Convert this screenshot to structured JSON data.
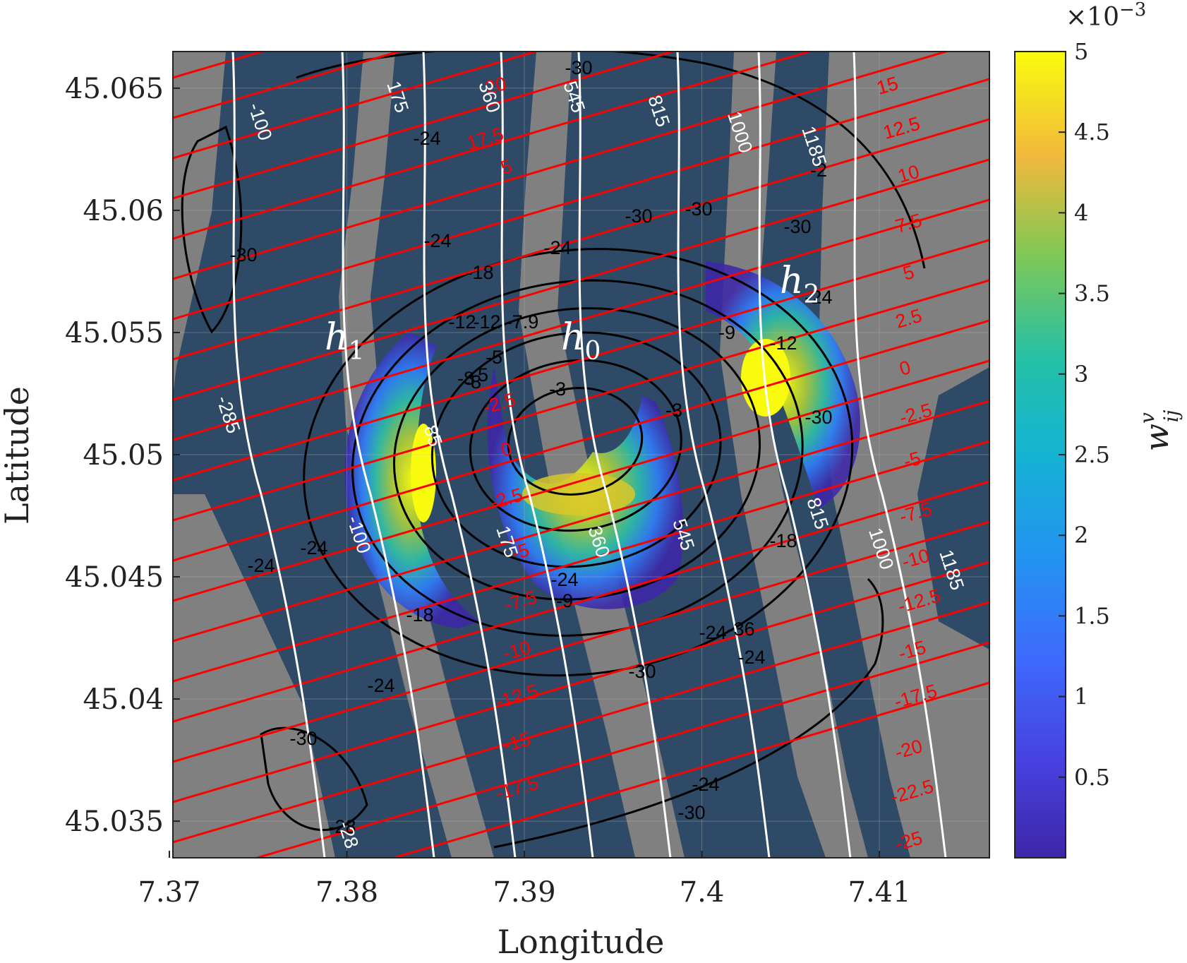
{
  "chart_data": {
    "type": "heatmap",
    "title": "",
    "xlabel": "Longitude",
    "ylabel": "Latitude",
    "xlim": [
      7.3702,
      7.4162
    ],
    "ylim": [
      45.0335,
      45.0665
    ],
    "x_ticks": [
      "7.37",
      "7.38",
      "7.39",
      "7.4",
      "7.41"
    ],
    "x_tick_values": [
      7.37,
      7.38,
      7.39,
      7.4,
      7.41
    ],
    "y_ticks": [
      "45.035",
      "45.04",
      "45.045",
      "45.05",
      "45.055",
      "45.06",
      "45.065"
    ],
    "y_tick_values": [
      45.035,
      45.04,
      45.045,
      45.05,
      45.055,
      45.06,
      45.065
    ],
    "grid": true,
    "colormap": "parula",
    "colorbar": {
      "label": "w",
      "label_sup": "v",
      "label_sub": "ij",
      "exponent_prefix": "×10",
      "exponent": "−3",
      "ticks": [
        "0.5",
        "1",
        "1.5",
        "2",
        "2.5",
        "3",
        "3.5",
        "4",
        "4.5",
        "5"
      ],
      "tick_values": [
        0.5,
        1,
        1.5,
        2,
        2.5,
        3,
        3.5,
        4,
        4.5,
        5
      ],
      "range": [
        0,
        5
      ]
    },
    "background_colors": {
      "swath": "#2f4a66",
      "gap": "#808080"
    },
    "heat_regions": [
      {
        "name": "h1",
        "center": [
          7.3835,
          45.0485
        ],
        "peak": 5.0
      },
      {
        "name": "h0",
        "center": [
          7.3935,
          45.0485
        ],
        "peak": 4.5
      },
      {
        "name": "h2",
        "center": [
          7.4055,
          45.0535
        ],
        "peak": 5.0
      }
    ],
    "region_labels": [
      {
        "main": "h",
        "sub": "1"
      },
      {
        "main": "h",
        "sub": "0"
      },
      {
        "main": "h",
        "sub": "2"
      }
    ],
    "white_contours": {
      "color": "#ffffff",
      "values": [
        "-285",
        "-100",
        "175",
        "360",
        "545",
        "815",
        "1000",
        "1185"
      ]
    },
    "red_contours": {
      "color": "#ff0000",
      "values": [
        "20",
        "17.5",
        "15",
        "12.5",
        "10",
        "7.5",
        "5",
        "2.5",
        "0",
        "-2.5",
        "-5",
        "-7.5",
        "-10",
        "-12.5",
        "-15",
        "-17.5",
        "-20",
        "-22.5",
        "-25"
      ]
    },
    "black_contours": {
      "color": "#000000",
      "values": [
        "-3",
        "-9",
        "-12",
        "-18",
        "-24",
        "-30",
        "-100",
        "-285"
      ]
    },
    "contour_label_texts": {
      "black": [
        "-30",
        "-24",
        "-30",
        "-24",
        "-24",
        "-18",
        "-12",
        "-9",
        "-7.9",
        "-5",
        "-3",
        "-3",
        "-12",
        "-12",
        "-18",
        "-24",
        "-24",
        "-30",
        "-30",
        "-24",
        "-24",
        "-30",
        "-24",
        "-30",
        "-36",
        "-30",
        "-18",
        "-9",
        "-24",
        "-30",
        "-24",
        "-2",
        "-28",
        "-5",
        "-8",
        "-8",
        "-30",
        "-24"
      ],
      "red": [
        "20",
        "17.5",
        "15",
        "12.5",
        "15",
        "12.5",
        "10",
        "7.5",
        "5",
        "2.5",
        "0",
        "-2.5",
        "-5",
        "-7.5",
        "-10",
        "-12.5",
        "-15",
        "-17.5",
        "-20",
        "-22.5",
        "-25",
        "5",
        "-2.5",
        "0",
        "-2.5",
        "-5",
        "-7.5",
        "-10",
        "-12.5",
        "-15",
        "-17.5"
      ],
      "white": [
        "-100",
        "175",
        "360",
        "545",
        "815",
        "1000",
        "1185",
        "-285",
        "-100",
        "175",
        "360",
        "545",
        "815",
        "1000",
        "1185",
        "85",
        "-28"
      ]
    }
  }
}
